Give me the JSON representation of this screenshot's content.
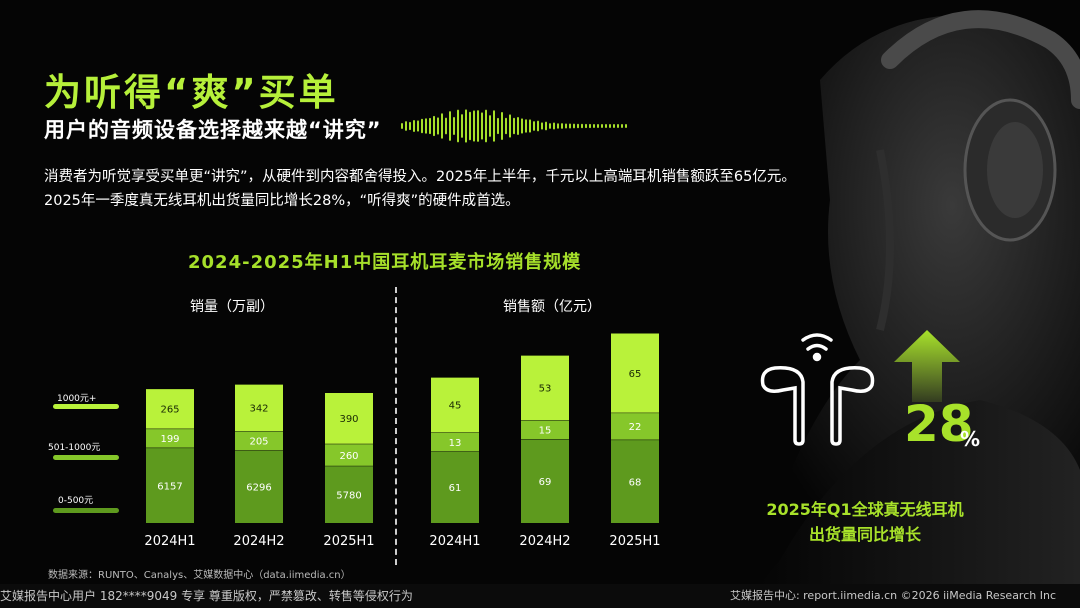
{
  "header": {
    "title": "为听得“爽”买单",
    "subtitle": "用户的音频设备选择越来越“讲究”",
    "desc_line1": "消费者为听觉享受买单更“讲究”，从硬件到内容都舍得投入。2025年上半年，千元以上高端耳机销售额跃至65亿元。",
    "desc_line2": "2025年一季度真无线耳机出货量同比增长28%，“听得爽”的硬件成首选。"
  },
  "chart_data": [
    {
      "type": "bar",
      "stacked": true,
      "title": "2024-2025年H1中国耳机耳麦市场销售规模",
      "panel_title": "销量（万副）",
      "categories": [
        "2024H1",
        "2024H2",
        "2025H1"
      ],
      "series": [
        {
          "name": "0-500元",
          "values": [
            6157,
            6296,
            5780
          ],
          "color": "#5e9a1e"
        },
        {
          "name": "501-1000元",
          "values": [
            199,
            205,
            260
          ],
          "color": "#86c72a"
        },
        {
          "name": "1000元+",
          "values": [
            265,
            342,
            390
          ],
          "color": "#b9f23a"
        }
      ]
    },
    {
      "type": "bar",
      "stacked": true,
      "panel_title": "销售额（亿元）",
      "categories": [
        "2024H1",
        "2024H2",
        "2025H1"
      ],
      "series": [
        {
          "name": "0-500元",
          "values": [
            61,
            69,
            68
          ],
          "color": "#5e9a1e"
        },
        {
          "name": "501-1000元",
          "values": [
            13,
            15,
            22
          ],
          "color": "#86c72a"
        },
        {
          "name": "1000元+",
          "values": [
            45,
            53,
            65
          ],
          "color": "#b9f23a"
        }
      ]
    }
  ],
  "legend": [
    {
      "name": "1000元+",
      "color": "#b9f23a"
    },
    {
      "name": "501-1000元",
      "color": "#86c72a"
    },
    {
      "name": "0-500元",
      "color": "#5e9a1e"
    }
  ],
  "stat": {
    "value": "28",
    "unit": "%",
    "label_line1": "2025年Q1全球真无线耳机",
    "label_line2": "出货量同比增长"
  },
  "source": "数据来源：RUNTO、Canalys、艾媒数据中心（data.iimedia.cn）",
  "footer": {
    "left": "艾媒报告中心用户 182****9049 专享 尊重版权，严禁篡改、转售等侵权行为",
    "right": "艾媒报告中心: report.iimedia.cn  ©2026  iiMedia Research  Inc"
  },
  "colors": {
    "accent": "#a8e22a",
    "background": "#050505"
  },
  "icons": [
    "earbuds-icon",
    "wireless-signal-icon",
    "up-arrow-icon",
    "sound-wave-icon",
    "headphone-person-image"
  ]
}
